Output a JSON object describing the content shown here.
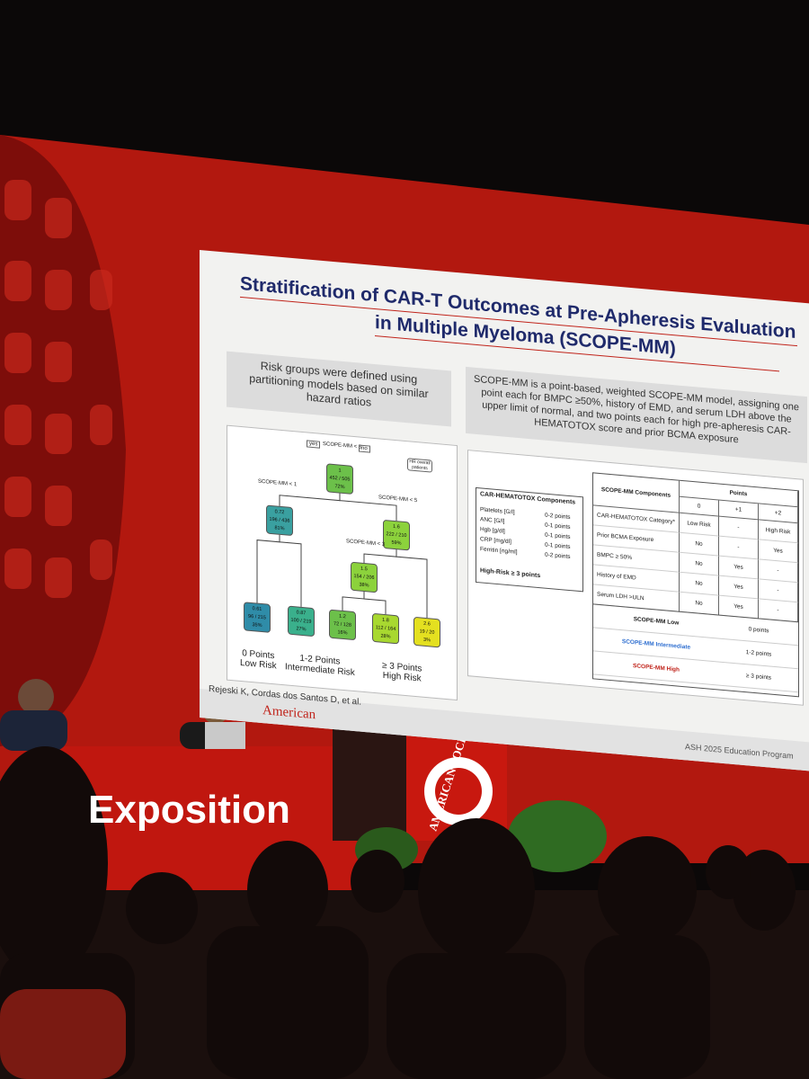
{
  "slide": {
    "title_line1": "Stratification of CAR-T Outcomes at Pre-Apheresis Evaluation",
    "title_line2": "in Multiple Myeloma (SCOPE-MM)",
    "left_note": "Risk groups were defined using partitioning models based on similar hazard ratios",
    "right_note": "SCOPE-MM is a point-based, weighted SCOPE-MM model, assigning one point each for BMPC ≥50%, history of EMD, and serum LDH above the upper limit of normal, and two points each for high pre-apheresis CAR-HEMATOTOX score and prior BCMA exposure",
    "tree": {
      "root_split": "SCOPE-MM < 3",
      "yes": "yes",
      "no": "no",
      "legend": "HR overall patients",
      "splits": [
        "SCOPE-MM < 1",
        "SCOPE-MM < 5",
        "SCOPE-MM < 3"
      ],
      "nodes": [
        {
          "label": "1",
          "counts": "452 / 505",
          "pct": "72%"
        },
        {
          "label": "0.72",
          "counts": "196 / 436",
          "pct": "81%"
        },
        {
          "label": "1.6",
          "counts": "222 / 210",
          "pct": "59%"
        },
        {
          "label": "1.5",
          "counts": "154 / 206",
          "pct": "38%"
        },
        {
          "label": "0.61",
          "counts": "96 / 215",
          "pct": "35%"
        },
        {
          "label": "0.87",
          "counts": "100 / 219",
          "pct": "27%"
        },
        {
          "label": "1.2",
          "counts": "72 / 128",
          "pct": "16%"
        },
        {
          "label": "1.8",
          "counts": "112 / 164",
          "pct": "28%"
        },
        {
          "label": "2.6",
          "counts": "19 / 20",
          "pct": "3%"
        }
      ],
      "groups": [
        {
          "points": "0 Points",
          "risk": "Low Risk"
        },
        {
          "points": "1-2 Points",
          "risk": "Intermediate Risk"
        },
        {
          "points": "≥ 3 Points",
          "risk": "High Risk"
        }
      ]
    },
    "components": {
      "title": "CAR-HEMATOTOX Components",
      "rows": [
        [
          "Platelets [G/l]",
          "0-2 points"
        ],
        [
          "ANC [G/l]",
          "0-1 points"
        ],
        [
          "Hgb [g/dl]",
          "0-1 points"
        ],
        [
          "CRP [mg/dl]",
          "0-1 points"
        ],
        [
          "Ferritin [ng/ml]",
          "0-2 points"
        ]
      ],
      "footer": "High-Risk ≥ 3 points"
    },
    "table": {
      "header": "SCOPE-MM Components",
      "points": "Points",
      "columns": [
        "0",
        "+1",
        "+2"
      ],
      "rows": [
        [
          "CAR-HEMATOTOX Category*",
          "Low Risk",
          "-",
          "High Risk"
        ],
        [
          "Prior BCMA Exposure",
          "No",
          "-",
          "Yes"
        ],
        [
          "BMPC ≥ 50%",
          "No",
          "Yes",
          "-"
        ],
        [
          "History of EMD",
          "No",
          "Yes",
          "-"
        ],
        [
          "Serum LDH >ULN",
          "No",
          "Yes",
          "-"
        ]
      ],
      "summary": [
        [
          "SCOPE-MM Low",
          "0 points"
        ],
        [
          "SCOPE-MM Intermediate",
          "1-2 points"
        ],
        [
          "SCOPE-MM High",
          "≥ 3 points"
        ]
      ]
    },
    "citation": "Rejeski K, Cordas dos Santos D, et al.",
    "footer_logo": "American",
    "footer_program": "ASH 2025 Education Program"
  },
  "stage": {
    "banner": "Exposition",
    "podium": "AMERICAN SOCIETY OF HEMATOLOGY"
  }
}
